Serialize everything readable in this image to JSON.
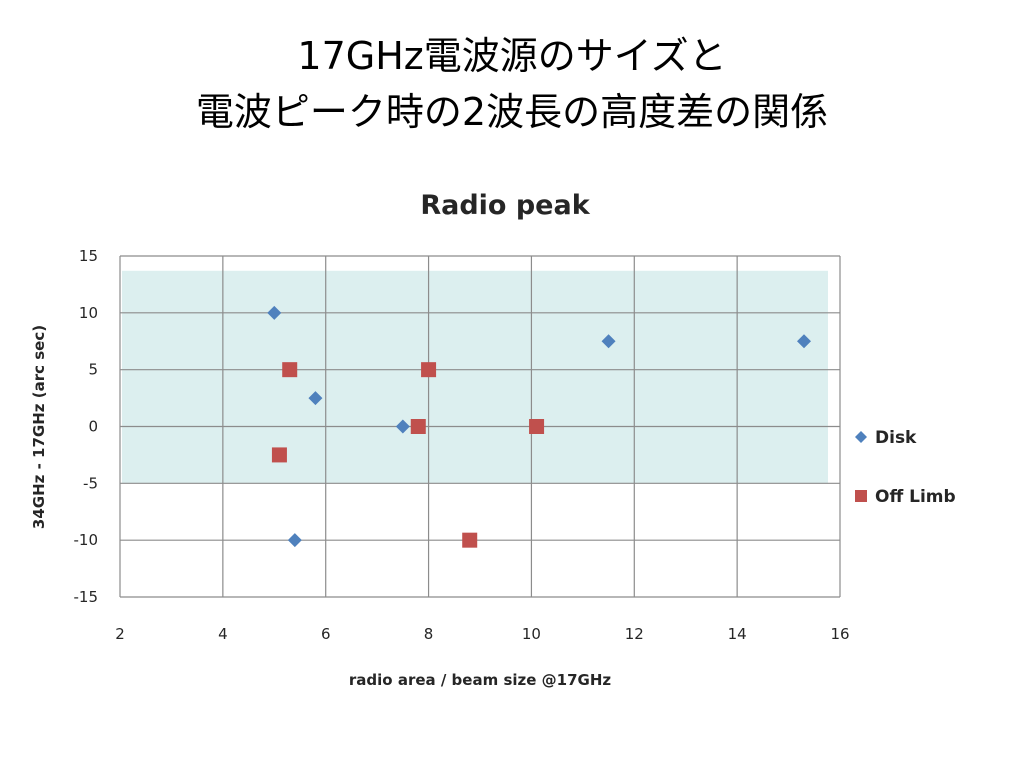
{
  "slide": {
    "title_line1": "17GHz電波源のサイズと",
    "title_line2": "電波ピーク時の2波長の高度差の関係"
  },
  "chart_data": {
    "type": "scatter",
    "title": "Radio peak",
    "xlabel": "radio area / beam size @17GHz",
    "ylabel": "34GHz - 17GHz (arc sec)",
    "xlim": [
      2,
      16
    ],
    "ylim": [
      -15,
      15
    ],
    "xticks": [
      2,
      4,
      6,
      8,
      10,
      12,
      14,
      16
    ],
    "yticks": [
      -15,
      -10,
      -5,
      0,
      5,
      10,
      15
    ],
    "grid": true,
    "legend_position": "right",
    "shaded_band": {
      "y_from": -5,
      "y_to": 13.7,
      "color": "#dcefef"
    },
    "series": [
      {
        "name": "Disk",
        "marker": "diamond",
        "color": "#4f81bd",
        "points": [
          [
            5.0,
            10
          ],
          [
            5.8,
            2.5
          ],
          [
            5.4,
            -10
          ],
          [
            7.5,
            0
          ],
          [
            11.5,
            7.5
          ],
          [
            15.3,
            7.5
          ]
        ]
      },
      {
        "name": "Off Limb",
        "marker": "square",
        "color": "#c0504d",
        "points": [
          [
            5.3,
            5
          ],
          [
            5.1,
            -2.5
          ],
          [
            7.8,
            0
          ],
          [
            8.0,
            5
          ],
          [
            8.8,
            -10
          ],
          [
            10.1,
            0
          ]
        ]
      }
    ]
  }
}
